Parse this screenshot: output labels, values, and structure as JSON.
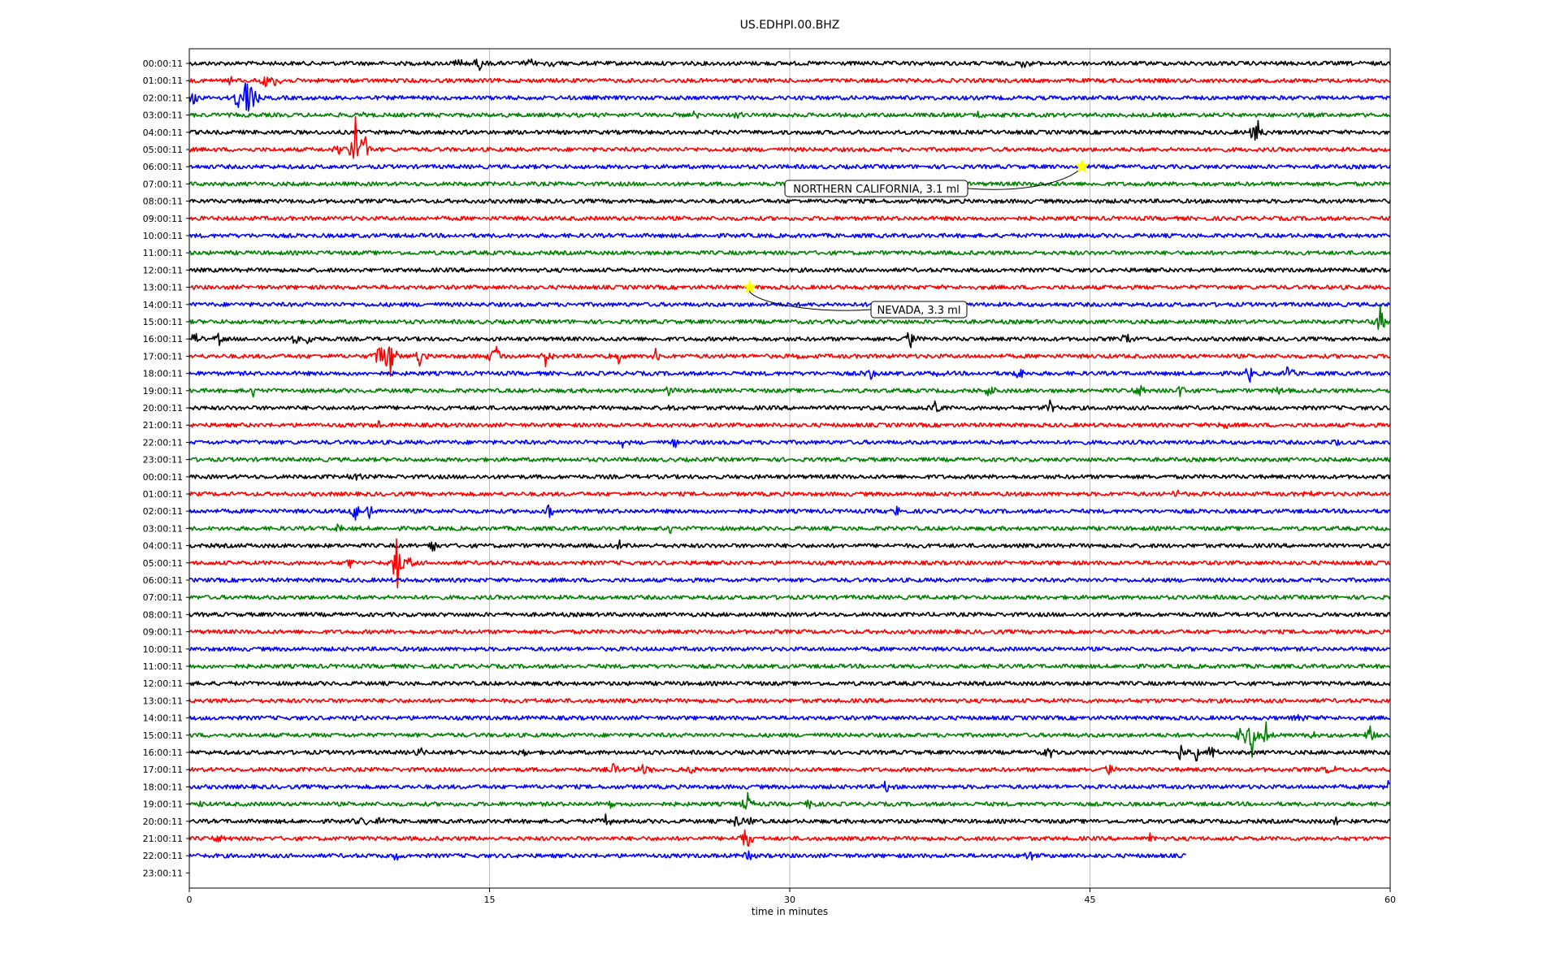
{
  "chart_data": {
    "type": "line",
    "title": "US.EDHPI.00.BHZ",
    "xlabel": "time in minutes",
    "ylabel": "",
    "xlim": [
      0,
      60
    ],
    "x_ticks": [
      "0",
      "15",
      "30",
      "45",
      "60"
    ],
    "x_tick_values": [
      0,
      15,
      30,
      45,
      60
    ],
    "grid": "vertical lines at 15, 30, 45",
    "trace_colors": [
      "#000000",
      "#ff0000",
      "#0000ff",
      "#008000"
    ],
    "row_labels": [
      "00:00:11",
      "01:00:11",
      "02:00:11",
      "03:00:11",
      "04:00:11",
      "05:00:11",
      "06:00:11",
      "07:00:11",
      "08:00:11",
      "09:00:11",
      "10:00:11",
      "11:00:11",
      "12:00:11",
      "13:00:11",
      "14:00:11",
      "15:00:11",
      "16:00:11",
      "17:00:11",
      "18:00:11",
      "19:00:11",
      "20:00:11",
      "21:00:11",
      "22:00:11",
      "23:00:11",
      "00:00:11",
      "01:00:11",
      "02:00:11",
      "03:00:11",
      "04:00:11",
      "05:00:11",
      "06:00:11",
      "07:00:11",
      "08:00:11",
      "09:00:11",
      "10:00:11",
      "11:00:11",
      "12:00:11",
      "13:00:11",
      "14:00:11",
      "15:00:11",
      "16:00:11",
      "17:00:11",
      "18:00:11",
      "19:00:11",
      "20:00:11",
      "21:00:11",
      "22:00:11",
      "23:00:11"
    ],
    "trace_end_minutes": {
      "46": 49.8
    },
    "events": [
      {
        "row": 0,
        "minutes": [
          13.5,
          14.5,
          17,
          18,
          41.7
        ],
        "amps": [
          0.4,
          0.5,
          0.3,
          0.3,
          0.3
        ]
      },
      {
        "row": 1,
        "minutes": [
          2,
          3.8,
          4.3
        ],
        "amps": [
          0.3,
          0.5,
          0.4
        ]
      },
      {
        "row": 2,
        "minutes": [
          0.2,
          2.5,
          2.9,
          3.2
        ],
        "amps": [
          0.4,
          1.2,
          2.2,
          0.8
        ]
      },
      {
        "row": 3,
        "minutes": [
          8.5,
          25.3,
          27.5,
          39.5
        ],
        "amps": [
          0.3,
          0.3,
          0.3,
          0.3
        ]
      },
      {
        "row": 4,
        "minutes": [
          53.3
        ],
        "amps": [
          1.3
        ]
      },
      {
        "row": 5,
        "minutes": [
          7.5,
          8.3,
          8.8
        ],
        "amps": [
          0.4,
          2.0,
          0.7
        ]
      },
      {
        "row": 15,
        "minutes": [
          59.5
        ],
        "amps": [
          1.0
        ]
      },
      {
        "row": 16,
        "minutes": [
          0.3,
          1.5,
          5.3,
          6,
          36,
          46.9
        ],
        "amps": [
          0.5,
          0.4,
          0.5,
          0.4,
          0.7,
          0.5
        ]
      },
      {
        "row": 17,
        "minutes": [
          9.5,
          10,
          11.5,
          15.3,
          17.8,
          21.5,
          23.3,
          30.5
        ],
        "amps": [
          0.9,
          1.8,
          0.6,
          1.0,
          0.6,
          0.6,
          0.5,
          0.3
        ]
      },
      {
        "row": 18,
        "minutes": [
          34,
          37.5,
          41.5,
          53,
          54.9
        ],
        "amps": [
          0.5,
          0.3,
          0.4,
          0.6,
          0.6
        ]
      },
      {
        "row": 19,
        "minutes": [
          3.2,
          24,
          40,
          47.5,
          49.5,
          54.5
        ],
        "amps": [
          0.3,
          0.3,
          0.5,
          0.4,
          0.4,
          0.3
        ]
      },
      {
        "row": 20,
        "minutes": [
          24.2,
          37.3,
          43
        ],
        "amps": [
          0.4,
          0.6,
          0.5
        ]
      },
      {
        "row": 21,
        "minutes": [
          9.5,
          51.7
        ],
        "amps": [
          0.3,
          0.3
        ]
      },
      {
        "row": 22,
        "minutes": [
          21.7,
          24.3,
          57.2
        ],
        "amps": [
          0.3,
          0.4,
          0.3
        ]
      },
      {
        "row": 24,
        "minutes": [
          8.3
        ],
        "amps": [
          0.3
        ]
      },
      {
        "row": 25,
        "minutes": [
          49.3,
          56
        ],
        "amps": [
          0.3,
          0.3
        ]
      },
      {
        "row": 26,
        "minutes": [
          8.3,
          9,
          18,
          35.3
        ],
        "amps": [
          0.6,
          0.5,
          0.5,
          0.3
        ]
      },
      {
        "row": 27,
        "minutes": [
          7.5,
          24
        ],
        "amps": [
          0.3,
          0.3
        ]
      },
      {
        "row": 28,
        "minutes": [
          12.2,
          21.5
        ],
        "amps": [
          0.4,
          0.3
        ]
      },
      {
        "row": 29,
        "minutes": [
          8,
          10.4,
          11
        ],
        "amps": [
          0.4,
          1.8,
          0.4
        ]
      },
      {
        "row": 38,
        "minutes": [
          8.2,
          55.5
        ],
        "amps": [
          0.3,
          0.3
        ]
      },
      {
        "row": 39,
        "minutes": [
          52.5,
          53.1,
          53.8,
          56.2,
          59
        ],
        "amps": [
          0.8,
          1.5,
          0.7,
          0.4,
          0.5
        ]
      },
      {
        "row": 40,
        "minutes": [
          11.6,
          16.8,
          43,
          49.5,
          50.3,
          51.1
        ],
        "amps": [
          0.3,
          0.3,
          0.4,
          0.5,
          0.6,
          0.5
        ]
      },
      {
        "row": 41,
        "minutes": [
          21.2,
          22.8,
          25,
          46,
          57
        ],
        "amps": [
          0.4,
          0.5,
          0.4,
          0.4,
          0.4
        ]
      },
      {
        "row": 42,
        "minutes": [
          34.8,
          59.9
        ],
        "amps": [
          0.4,
          0.4
        ]
      },
      {
        "row": 43,
        "minutes": [
          0.5,
          21,
          27.9,
          31
        ],
        "amps": [
          0.3,
          0.4,
          0.6,
          0.3
        ]
      },
      {
        "row": 44,
        "minutes": [
          8.6,
          9.5,
          20.8,
          27.4,
          28,
          57.3
        ],
        "amps": [
          0.4,
          0.3,
          0.5,
          0.5,
          0.4,
          0.3
        ]
      },
      {
        "row": 45,
        "minutes": [
          1.5,
          27.8,
          48
        ],
        "amps": [
          0.3,
          1.0,
          0.3
        ]
      },
      {
        "row": 46,
        "minutes": [
          10.3,
          27.9,
          42
        ],
        "amps": [
          0.3,
          0.5,
          0.3
        ]
      }
    ],
    "annotations": [
      {
        "text": "NORTHERN CALIFORNIA, 3.1 ml",
        "row": 6,
        "minute": 44.6,
        "marker": "star",
        "marker_color": "#ffff00"
      },
      {
        "text": "NEVADA, 3.3 ml",
        "row": 13,
        "minute": 28.0,
        "marker": "star",
        "marker_color": "#ffff00"
      }
    ]
  }
}
